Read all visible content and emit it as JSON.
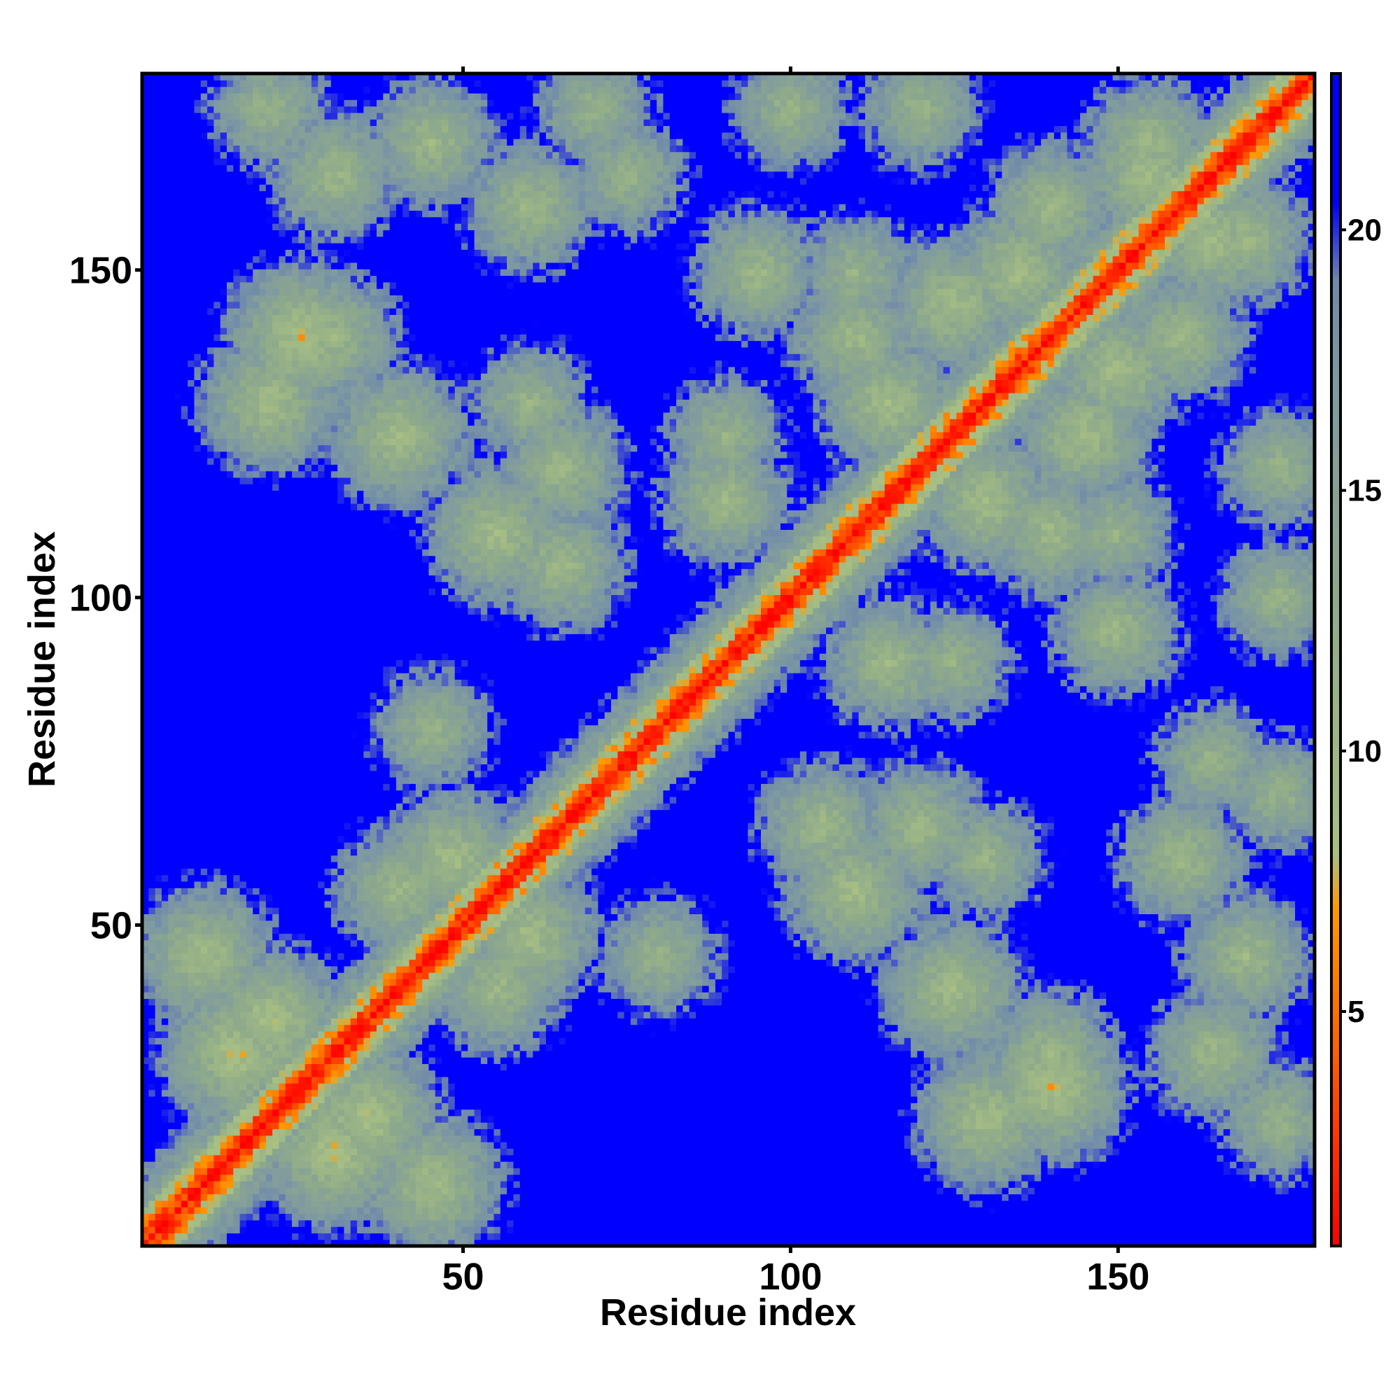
{
  "chart_data": {
    "type": "heatmap",
    "title": "",
    "xlabel": "Residue index",
    "ylabel": "Residue index",
    "xlim": [
      1,
      180
    ],
    "ylim": [
      1,
      180
    ],
    "x_ticks": [
      50,
      100,
      150
    ],
    "y_ticks": [
      50,
      100,
      150
    ],
    "colorbar": {
      "range": [
        0.5,
        23
      ],
      "ticks": [
        5,
        10,
        15,
        20
      ],
      "colors": [
        {
          "value": 0.5,
          "color": "#ff0000"
        },
        {
          "value": 4.0,
          "color": "#ff5a00"
        },
        {
          "value": 7.0,
          "color": "#ff9900"
        },
        {
          "value": 8.0,
          "color": "#a9c083"
        },
        {
          "value": 13.0,
          "color": "#8eaa8a"
        },
        {
          "value": 17.0,
          "color": "#7f9aa0"
        },
        {
          "value": 19.0,
          "color": "#708aaa"
        },
        {
          "value": 20.5,
          "color": "#0000ff"
        },
        {
          "value": 23.0,
          "color": "#0000ff"
        }
      ]
    },
    "cutoff_value": 20.5,
    "matrix_size": 180,
    "matrix_description": "Symmetric residue-residue distance map; diagonal near 0, contact regions 5-20, beyond-cutoff blue",
    "contact_regions": [
      {
        "i": 10,
        "j": 45,
        "value": 9
      },
      {
        "i": 15,
        "j": 30,
        "value": 8
      },
      {
        "i": 25,
        "j": 140,
        "value": 8
      },
      {
        "i": 30,
        "j": 165,
        "value": 10
      },
      {
        "i": 35,
        "j": 20,
        "value": 8
      },
      {
        "i": 40,
        "j": 125,
        "value": 9
      },
      {
        "i": 45,
        "j": 170,
        "value": 10
      },
      {
        "i": 48,
        "j": 60,
        "value": 9
      },
      {
        "i": 55,
        "j": 40,
        "value": 10
      },
      {
        "i": 55,
        "j": 110,
        "value": 9
      },
      {
        "i": 60,
        "j": 160,
        "value": 10
      },
      {
        "i": 65,
        "j": 120,
        "value": 10
      },
      {
        "i": 70,
        "j": 175,
        "value": 11
      },
      {
        "i": 80,
        "j": 45,
        "value": 11
      },
      {
        "i": 90,
        "j": 115,
        "value": 10
      },
      {
        "i": 95,
        "j": 150,
        "value": 10
      },
      {
        "i": 100,
        "j": 175,
        "value": 11
      },
      {
        "i": 105,
        "j": 65,
        "value": 10
      },
      {
        "i": 110,
        "j": 140,
        "value": 10
      },
      {
        "i": 115,
        "j": 130,
        "value": 9
      },
      {
        "i": 120,
        "j": 175,
        "value": 11
      },
      {
        "i": 125,
        "j": 90,
        "value": 11
      },
      {
        "i": 130,
        "j": 20,
        "value": 9
      },
      {
        "i": 130,
        "j": 60,
        "value": 11
      },
      {
        "i": 135,
        "j": 150,
        "value": 9
      },
      {
        "i": 140,
        "j": 30,
        "value": 10
      },
      {
        "i": 145,
        "j": 125,
        "value": 9
      },
      {
        "i": 150,
        "j": 110,
        "value": 11
      },
      {
        "i": 155,
        "j": 165,
        "value": 9
      },
      {
        "i": 160,
        "j": 140,
        "value": 10
      },
      {
        "i": 165,
        "j": 75,
        "value": 11
      },
      {
        "i": 170,
        "j": 155,
        "value": 10
      },
      {
        "i": 175,
        "j": 20,
        "value": 11
      }
    ]
  }
}
